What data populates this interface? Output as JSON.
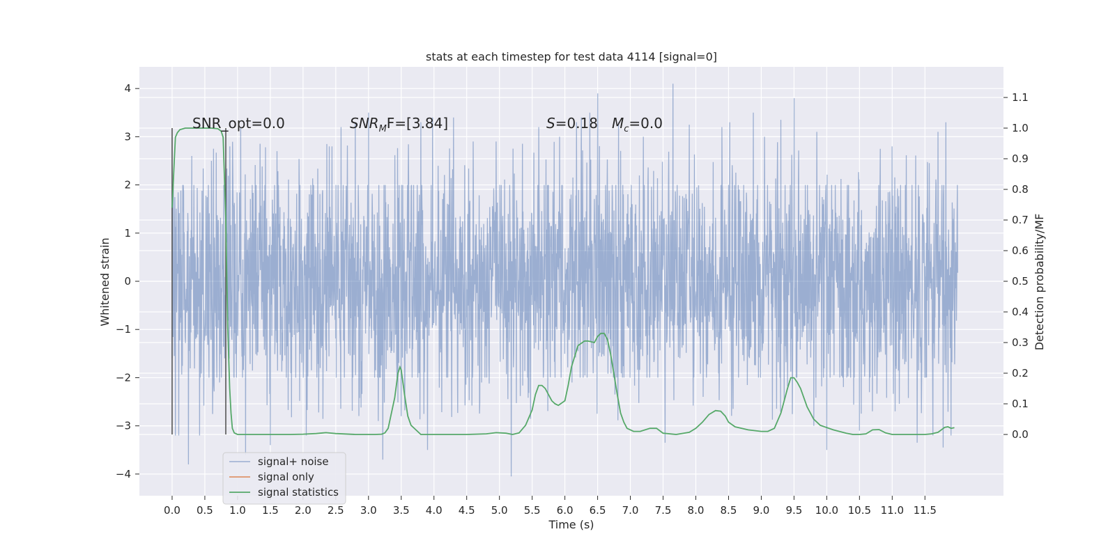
{
  "chart_data": {
    "type": "line",
    "title": "stats at each timestep for test data 4114 [signal=0]",
    "xlabel": "Time (s)",
    "ylabel": "Whitened strain",
    "y2label": "Detection probability/MF",
    "xlim": [
      -0.5,
      12.7
    ],
    "ylim": [
      -4.45,
      4.45
    ],
    "y2lim": [
      -0.2,
      1.2
    ],
    "x_ticks": [
      "0.0",
      "0.5",
      "1.0",
      "1.5",
      "2.0",
      "2.5",
      "3.0",
      "3.5",
      "4.0",
      "4.5",
      "5.0",
      "5.5",
      "6.0",
      "6.5",
      "7.0",
      "7.5",
      "8.0",
      "8.5",
      "9.0",
      "9.5",
      "10.0",
      "10.5",
      "11.0",
      "11.5"
    ],
    "y_ticks": [
      4,
      3,
      2,
      1,
      0,
      -1,
      -2,
      -3,
      -4
    ],
    "y_tick_labels": [
      "4",
      "3",
      "2",
      "1",
      "0",
      "−1",
      "−2",
      "−3",
      "−4"
    ],
    "y2_ticks": [
      1.1,
      1.0,
      0.9,
      0.8,
      0.7,
      0.6,
      0.5,
      0.4,
      0.3,
      0.2,
      0.1,
      0.0
    ],
    "y2_tick_labels": [
      "1.1",
      "1.0",
      "0.9",
      "0.8",
      "0.7",
      "0.6",
      "0.5",
      "0.4",
      "0.3",
      "0.2",
      "0.1",
      "0.0"
    ],
    "grid": true,
    "legend_position": "lower-left",
    "annotations": {
      "snr_opt": "SNR_opt=0.0",
      "snr_mf_prefix": "SNR",
      "snr_mf_sub": "M",
      "snr_mf_suffix": "F=[3.84]",
      "s_prefix": "S",
      "s_value": "=0.18",
      "mc_prefix": "M",
      "mc_sub": "c",
      "mc_value": "=0.0"
    },
    "vertical_markers_x": [
      0.0,
      0.82
    ],
    "series": [
      {
        "name": "signal+ noise",
        "color": "#4c72b0",
        "opacity": 0.5,
        "x_range": [
          0.0,
          12.0
        ],
        "approx_amplitude": 2.0,
        "peaks": [
          [
            0.05,
            -3.2
          ],
          [
            0.1,
            -3.2
          ],
          [
            0.25,
            -3.8
          ],
          [
            0.42,
            -3.2
          ],
          [
            0.3,
            2.6
          ],
          [
            0.6,
            2.5
          ],
          [
            0.88,
            2.8
          ],
          [
            1.05,
            3.2
          ],
          [
            1.12,
            -3.6
          ],
          [
            1.5,
            -3.4
          ],
          [
            1.6,
            2.7
          ],
          [
            2.05,
            -3.2
          ],
          [
            2.4,
            2.8
          ],
          [
            2.58,
            3.2
          ],
          [
            2.8,
            3.3
          ],
          [
            3.0,
            3.5
          ],
          [
            3.22,
            -3.7
          ],
          [
            3.5,
            -2.8
          ],
          [
            3.8,
            3.3
          ],
          [
            3.9,
            -3.5
          ],
          [
            3.98,
            3.4
          ],
          [
            4.3,
            3.4
          ],
          [
            4.6,
            2.9
          ],
          [
            4.95,
            2.9
          ],
          [
            5.18,
            -4.05
          ],
          [
            5.6,
            3.2
          ],
          [
            5.92,
            3.0
          ],
          [
            6.18,
            3.3
          ],
          [
            6.25,
            3.4
          ],
          [
            6.38,
            3.5
          ],
          [
            6.5,
            3.9
          ],
          [
            6.82,
            3.3
          ],
          [
            7.2,
            3.0
          ],
          [
            7.53,
            -3.35
          ],
          [
            7.65,
            4.1
          ],
          [
            7.9,
            3.25
          ],
          [
            8.4,
            3.2
          ],
          [
            8.52,
            3.3
          ],
          [
            8.88,
            3.5
          ],
          [
            9.05,
            3.0
          ],
          [
            9.3,
            3.35
          ],
          [
            9.5,
            3.8
          ],
          [
            9.8,
            -3.0
          ],
          [
            9.85,
            3.1
          ],
          [
            10.0,
            -3.5
          ],
          [
            10.5,
            -3.1
          ],
          [
            10.82,
            2.75
          ],
          [
            11.0,
            2.8
          ],
          [
            11.38,
            -3.35
          ],
          [
            11.62,
            -3.2
          ],
          [
            11.7,
            3.1
          ],
          [
            11.78,
            -3.45
          ],
          [
            11.82,
            3.3
          ],
          [
            11.9,
            -3.2
          ]
        ]
      },
      {
        "name": "signal only",
        "color": "#dd8452",
        "values": []
      },
      {
        "name": "signal statistics",
        "color": "#55a868",
        "axis": "right",
        "x": [
          0.0,
          0.03,
          0.05,
          0.08,
          0.12,
          0.2,
          0.3,
          0.5,
          0.6,
          0.7,
          0.75,
          0.78,
          0.82,
          0.85,
          0.88,
          0.9,
          0.92,
          0.95,
          1.0,
          1.1,
          1.2,
          1.4,
          1.8,
          2.0,
          2.2,
          2.3,
          2.35,
          2.5,
          2.8,
          3.0,
          3.1,
          3.2,
          3.25,
          3.3,
          3.4,
          3.45,
          3.48,
          3.5,
          3.55,
          3.6,
          3.65,
          3.8,
          4.0,
          4.5,
          4.8,
          4.95,
          5.1,
          5.2,
          5.3,
          5.4,
          5.5,
          5.55,
          5.6,
          5.65,
          5.7,
          5.8,
          5.85,
          5.9,
          6.0,
          6.05,
          6.1,
          6.2,
          6.3,
          6.35,
          6.45,
          6.5,
          6.55,
          6.6,
          6.65,
          6.7,
          6.8,
          6.85,
          6.9,
          6.95,
          7.05,
          7.15,
          7.3,
          7.4,
          7.5,
          7.7,
          7.9,
          8.0,
          8.1,
          8.2,
          8.3,
          8.38,
          8.45,
          8.5,
          8.6,
          8.8,
          9.0,
          9.1,
          9.2,
          9.3,
          9.4,
          9.45,
          9.5,
          9.55,
          9.6,
          9.7,
          9.8,
          9.9,
          10.1,
          10.3,
          10.4,
          10.5,
          10.6,
          10.7,
          10.8,
          10.9,
          11.0,
          11.2,
          11.5,
          11.6,
          11.7,
          11.8,
          11.85,
          11.9,
          11.95
        ],
        "values": [
          0.74,
          0.88,
          0.97,
          0.985,
          0.995,
          1.0,
          1.0,
          1.0,
          1.0,
          0.998,
          0.99,
          0.97,
          0.7,
          0.35,
          0.15,
          0.07,
          0.02,
          0.005,
          0.0,
          0.0,
          0.0,
          0.0,
          0.0,
          0.001,
          0.003,
          0.005,
          0.006,
          0.003,
          0.0,
          0.0,
          0.0,
          0.001,
          0.005,
          0.02,
          0.12,
          0.2,
          0.22,
          0.21,
          0.13,
          0.06,
          0.03,
          0.0,
          0.0,
          0.0,
          0.002,
          0.006,
          0.004,
          0.0,
          0.005,
          0.03,
          0.08,
          0.13,
          0.16,
          0.16,
          0.15,
          0.11,
          0.1,
          0.095,
          0.11,
          0.16,
          0.22,
          0.29,
          0.305,
          0.305,
          0.3,
          0.32,
          0.33,
          0.33,
          0.31,
          0.26,
          0.13,
          0.07,
          0.04,
          0.02,
          0.01,
          0.01,
          0.02,
          0.02,
          0.004,
          0.0,
          0.007,
          0.02,
          0.04,
          0.065,
          0.078,
          0.076,
          0.06,
          0.04,
          0.025,
          0.015,
          0.01,
          0.01,
          0.02,
          0.07,
          0.15,
          0.185,
          0.185,
          0.17,
          0.15,
          0.09,
          0.05,
          0.03,
          0.015,
          0.004,
          0.0,
          0.0,
          0.002,
          0.015,
          0.016,
          0.005,
          0.0,
          0.0,
          0.0,
          0.002,
          0.007,
          0.023,
          0.025,
          0.02,
          0.022
        ]
      }
    ]
  }
}
